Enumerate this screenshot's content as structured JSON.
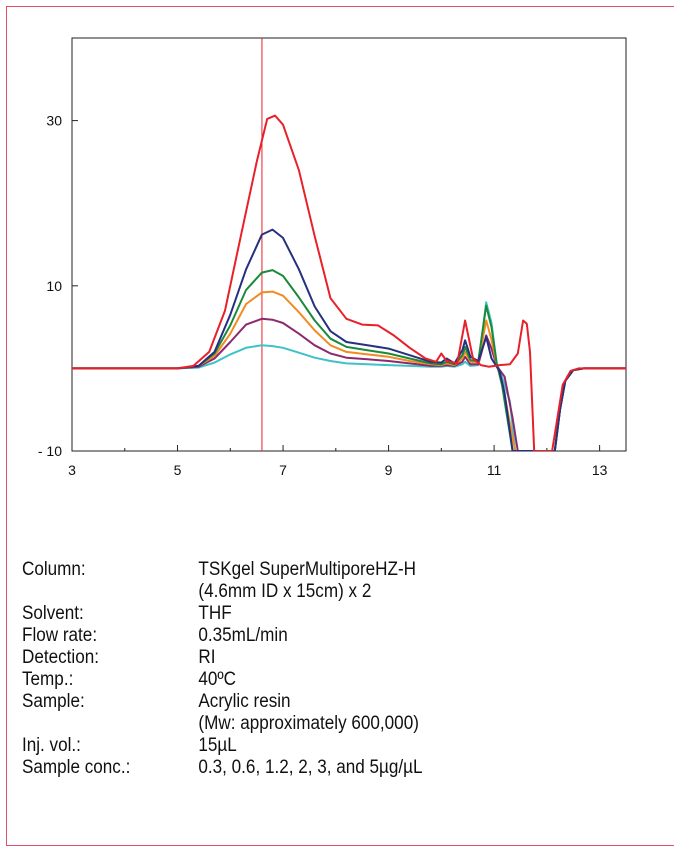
{
  "chart_data": {
    "type": "line",
    "title": "",
    "xlabel": "",
    "ylabel": "",
    "xlim": [
      3,
      13.5
    ],
    "ylim": [
      -10,
      40
    ],
    "x_ticks": [
      3,
      5,
      7,
      9,
      11,
      13
    ],
    "x_tick_labels": [
      "3",
      "5",
      "7",
      "9",
      "11",
      "13"
    ],
    "y_ticks": [
      -10,
      10,
      30
    ],
    "y_tick_labels": [
      "- 10",
      "10",
      "30"
    ],
    "grid": false,
    "marker_line_x": 6.6,
    "series": [
      {
        "color": "#e8202a",
        "points": [
          [
            3,
            0
          ],
          [
            5,
            0
          ],
          [
            5.3,
            0.3
          ],
          [
            5.6,
            2
          ],
          [
            5.9,
            7
          ],
          [
            6.2,
            16
          ],
          [
            6.5,
            25
          ],
          [
            6.7,
            30.2
          ],
          [
            6.85,
            30.6
          ],
          [
            7,
            29.5
          ],
          [
            7.3,
            24
          ],
          [
            7.6,
            16
          ],
          [
            7.9,
            8.5
          ],
          [
            8.2,
            6
          ],
          [
            8.5,
            5.3
          ],
          [
            8.8,
            5.2
          ],
          [
            9.1,
            4
          ],
          [
            9.4,
            2.5
          ],
          [
            9.7,
            1.2
          ],
          [
            9.9,
            0.8
          ],
          [
            10.0,
            1.8
          ],
          [
            10.1,
            0.9
          ],
          [
            10.3,
            0.6
          ],
          [
            10.45,
            5.8
          ],
          [
            10.6,
            1.2
          ],
          [
            10.75,
            0.4
          ],
          [
            10.9,
            0.2
          ],
          [
            11.1,
            0.4
          ],
          [
            11.3,
            0.5
          ],
          [
            11.45,
            1.8
          ],
          [
            11.55,
            5.8
          ],
          [
            11.62,
            5.4
          ],
          [
            11.68,
            2
          ],
          [
            11.72,
            -4
          ],
          [
            11.76,
            -10
          ],
          [
            12.1,
            -10
          ],
          [
            12.2,
            -6
          ],
          [
            12.3,
            -2
          ],
          [
            12.45,
            -0.3
          ],
          [
            12.6,
            0
          ],
          [
            13.5,
            0
          ]
        ]
      },
      {
        "color": "#26307f",
        "points": [
          [
            3,
            0
          ],
          [
            5,
            0
          ],
          [
            5.4,
            0.3
          ],
          [
            5.7,
            2
          ],
          [
            6,
            6.5
          ],
          [
            6.3,
            12
          ],
          [
            6.6,
            16.2
          ],
          [
            6.8,
            16.8
          ],
          [
            7,
            15.8
          ],
          [
            7.3,
            12
          ],
          [
            7.6,
            7.5
          ],
          [
            7.9,
            4.5
          ],
          [
            8.2,
            3.2
          ],
          [
            8.6,
            2.8
          ],
          [
            9,
            2.4
          ],
          [
            9.4,
            1.6
          ],
          [
            9.8,
            0.8
          ],
          [
            10,
            0.7
          ],
          [
            10.1,
            1.2
          ],
          [
            10.25,
            0.6
          ],
          [
            10.4,
            2.2
          ],
          [
            10.45,
            3.4
          ],
          [
            10.55,
            1.4
          ],
          [
            10.7,
            0.9
          ],
          [
            10.85,
            3.8
          ],
          [
            10.95,
            1.2
          ],
          [
            11.1,
            -0.3
          ],
          [
            11.2,
            -3
          ],
          [
            11.35,
            -10
          ],
          [
            11.4,
            -10
          ],
          [
            12.15,
            -10
          ],
          [
            12.25,
            -5
          ],
          [
            12.35,
            -1.5
          ],
          [
            12.5,
            -0.2
          ],
          [
            12.7,
            0
          ],
          [
            13.5,
            0
          ]
        ]
      },
      {
        "color": "#1c8a3a",
        "points": [
          [
            3,
            0
          ],
          [
            5,
            0
          ],
          [
            5.4,
            0.3
          ],
          [
            5.7,
            1.8
          ],
          [
            6,
            5.2
          ],
          [
            6.3,
            9.5
          ],
          [
            6.6,
            11.6
          ],
          [
            6.8,
            11.9
          ],
          [
            7,
            11.2
          ],
          [
            7.3,
            8.6
          ],
          [
            7.6,
            5.8
          ],
          [
            7.9,
            3.6
          ],
          [
            8.2,
            2.6
          ],
          [
            8.6,
            2.2
          ],
          [
            9,
            1.8
          ],
          [
            9.4,
            1.2
          ],
          [
            9.8,
            0.6
          ],
          [
            10,
            0.5
          ],
          [
            10.1,
            0.8
          ],
          [
            10.25,
            0.5
          ],
          [
            10.4,
            1.6
          ],
          [
            10.45,
            2.6
          ],
          [
            10.55,
            1
          ],
          [
            10.7,
            0.9
          ],
          [
            10.85,
            7.6
          ],
          [
            10.95,
            5
          ],
          [
            11.05,
            0.6
          ],
          [
            11.15,
            -2
          ],
          [
            11.25,
            -6
          ],
          [
            11.35,
            -10
          ],
          [
            12.15,
            -10
          ],
          [
            12.25,
            -5
          ],
          [
            12.35,
            -1.5
          ],
          [
            12.5,
            -0.2
          ],
          [
            12.7,
            0
          ],
          [
            13.5,
            0
          ]
        ]
      },
      {
        "color": "#f28b22",
        "points": [
          [
            3,
            0
          ],
          [
            5,
            0
          ],
          [
            5.4,
            0.3
          ],
          [
            5.7,
            1.5
          ],
          [
            6,
            4.2
          ],
          [
            6.3,
            7.8
          ],
          [
            6.6,
            9.2
          ],
          [
            6.8,
            9.3
          ],
          [
            7,
            8.8
          ],
          [
            7.3,
            6.8
          ],
          [
            7.6,
            4.6
          ],
          [
            7.9,
            2.8
          ],
          [
            8.2,
            2
          ],
          [
            8.6,
            1.7
          ],
          [
            9,
            1.4
          ],
          [
            9.4,
            0.9
          ],
          [
            9.8,
            0.5
          ],
          [
            10,
            0.4
          ],
          [
            10.1,
            0.6
          ],
          [
            10.25,
            0.4
          ],
          [
            10.4,
            1.2
          ],
          [
            10.45,
            2
          ],
          [
            10.55,
            0.8
          ],
          [
            10.7,
            0.7
          ],
          [
            10.85,
            5.8
          ],
          [
            10.95,
            3.5
          ],
          [
            11.05,
            0.4
          ],
          [
            11.15,
            -1.5
          ],
          [
            11.28,
            -6
          ],
          [
            11.4,
            -10
          ],
          [
            12.15,
            -10
          ],
          [
            12.25,
            -5
          ],
          [
            12.35,
            -1.5
          ],
          [
            12.5,
            -0.2
          ],
          [
            12.7,
            0
          ],
          [
            13.5,
            0
          ]
        ]
      },
      {
        "color": "#8b2a6e",
        "points": [
          [
            3,
            0
          ],
          [
            5,
            0
          ],
          [
            5.4,
            0.2
          ],
          [
            5.7,
            1.2
          ],
          [
            6,
            3.2
          ],
          [
            6.3,
            5.3
          ],
          [
            6.6,
            6
          ],
          [
            6.8,
            5.9
          ],
          [
            7,
            5.5
          ],
          [
            7.3,
            4.2
          ],
          [
            7.6,
            2.8
          ],
          [
            7.9,
            1.8
          ],
          [
            8.2,
            1.3
          ],
          [
            8.6,
            1.1
          ],
          [
            9,
            0.9
          ],
          [
            9.4,
            0.6
          ],
          [
            9.8,
            0.3
          ],
          [
            10,
            0.3
          ],
          [
            10.1,
            0.4
          ],
          [
            10.25,
            0.3
          ],
          [
            10.4,
            0.8
          ],
          [
            10.45,
            1.4
          ],
          [
            10.55,
            0.5
          ],
          [
            10.7,
            0.5
          ],
          [
            10.85,
            4
          ],
          [
            10.95,
            2.4
          ],
          [
            11.05,
            0.3
          ],
          [
            11.2,
            -1
          ],
          [
            11.35,
            -6
          ],
          [
            11.45,
            -10
          ],
          [
            12.15,
            -10
          ],
          [
            12.25,
            -5
          ],
          [
            12.35,
            -1.5
          ],
          [
            12.5,
            -0.2
          ],
          [
            12.7,
            0
          ],
          [
            13.5,
            0
          ]
        ]
      },
      {
        "color": "#3ec2c8",
        "points": [
          [
            3,
            0
          ],
          [
            5,
            0
          ],
          [
            5.4,
            0.1
          ],
          [
            5.7,
            0.7
          ],
          [
            6,
            1.7
          ],
          [
            6.3,
            2.5
          ],
          [
            6.6,
            2.8
          ],
          [
            6.8,
            2.7
          ],
          [
            7,
            2.5
          ],
          [
            7.3,
            1.9
          ],
          [
            7.6,
            1.3
          ],
          [
            7.9,
            0.9
          ],
          [
            8.2,
            0.6
          ],
          [
            8.6,
            0.5
          ],
          [
            9,
            0.4
          ],
          [
            9.4,
            0.3
          ],
          [
            9.8,
            0.2
          ],
          [
            10,
            0.2
          ],
          [
            10.1,
            0.3
          ],
          [
            10.25,
            0.2
          ],
          [
            10.4,
            0.5
          ],
          [
            10.45,
            0.8
          ],
          [
            10.55,
            0.3
          ],
          [
            10.7,
            0.4
          ],
          [
            10.85,
            8
          ],
          [
            10.95,
            5.5
          ],
          [
            11.05,
            0.6
          ],
          [
            11.15,
            -1
          ],
          [
            11.3,
            -4
          ],
          [
            11.4,
            -10
          ],
          [
            12.15,
            -10
          ],
          [
            12.25,
            -5
          ],
          [
            12.35,
            -1.5
          ],
          [
            12.5,
            -0.2
          ],
          [
            12.7,
            0
          ],
          [
            13.5,
            0
          ]
        ]
      }
    ]
  },
  "conditions": [
    {
      "label": "Column:",
      "values": [
        "TSKgel SuperMultiporeHZ-H",
        "(4.6mm ID x 15cm) x 2"
      ]
    },
    {
      "label": "Solvent:",
      "values": [
        "THF"
      ]
    },
    {
      "label": "Flow rate:",
      "values": [
        "0.35mL/min"
      ]
    },
    {
      "label": "Detection:",
      "values": [
        "RI"
      ]
    },
    {
      "label": "Temp.:",
      "values": [
        "40ºC"
      ]
    },
    {
      "label": "Sample:",
      "values": [
        "Acrylic resin",
        "(Mw: approximately 600,000)"
      ]
    },
    {
      "label": "Inj. vol.:",
      "values": [
        "15µL"
      ]
    },
    {
      "label": "Sample conc.:",
      "values": [
        "0.3, 0.6, 1.2, 2, 3, and 5µg/µL"
      ]
    }
  ]
}
